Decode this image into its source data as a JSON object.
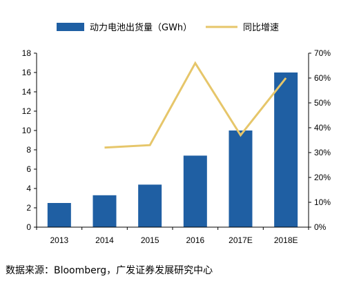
{
  "chart_data": {
    "type": "bar",
    "categories": [
      "2013",
      "2014",
      "2015",
      "2016",
      "2017E",
      "2018E"
    ],
    "series": [
      {
        "name": "动力电池出货量（GWh）",
        "type": "bar",
        "axis": "left",
        "values": [
          2.5,
          3.3,
          4.4,
          7.4,
          10.0,
          16.0
        ],
        "color": "#1f5fa3"
      },
      {
        "name": "同比增速",
        "type": "line",
        "axis": "right",
        "values": [
          null,
          32,
          33,
          66,
          37,
          60
        ],
        "color": "#e6c66a"
      }
    ],
    "y_left": {
      "min": 0,
      "max": 18,
      "step": 2
    },
    "y_right": {
      "min": 0,
      "max": 70,
      "step": 10,
      "unit": "%"
    },
    "grid": false,
    "legend_position": "top"
  },
  "source": "数据来源：Bloomberg，广发证券发展研究中心"
}
